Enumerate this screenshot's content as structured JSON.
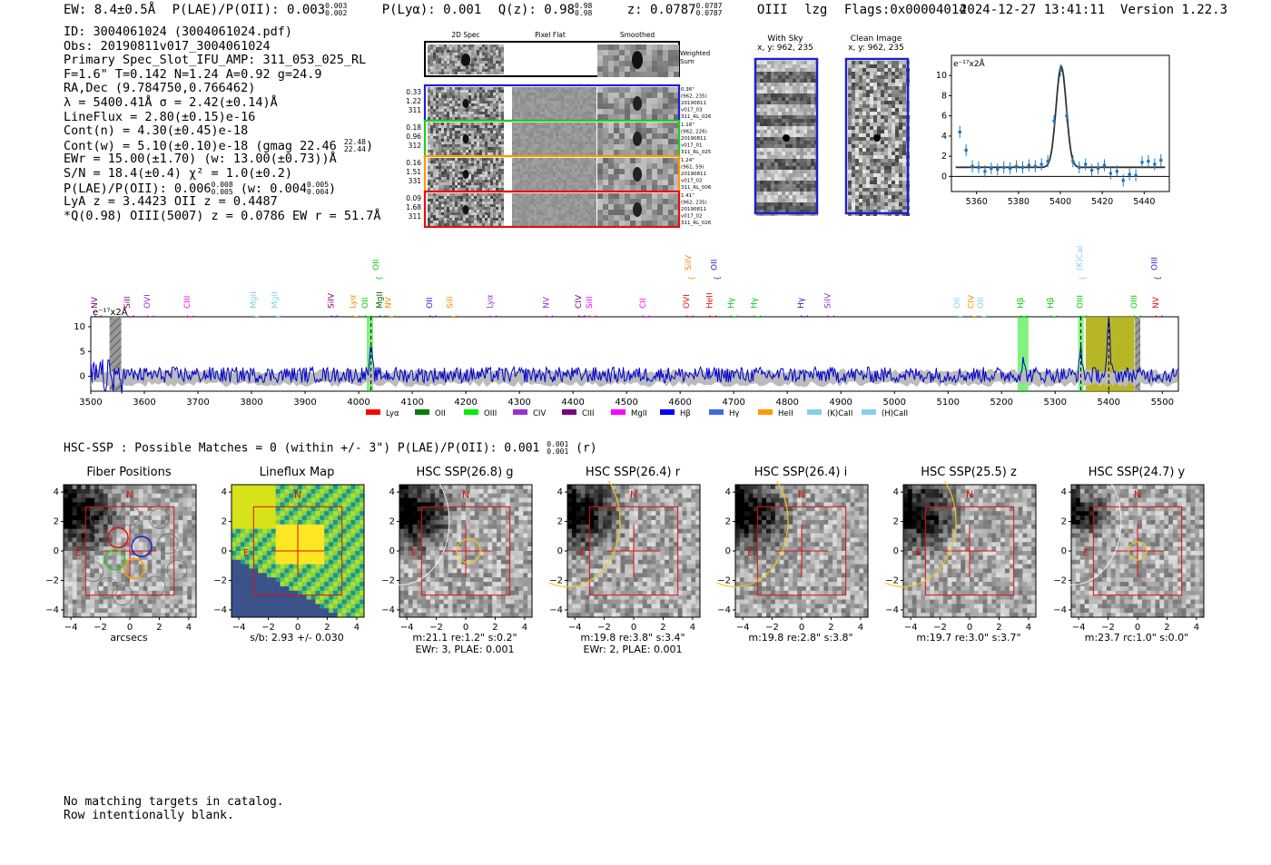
{
  "header": {
    "ew": "EW: 8.4±0.5Å",
    "plae_label": "P(LAE)/P(OII): 0.003",
    "plae_hi": "0.003",
    "plae_lo": "0.002",
    "plya": "P(Lyα): 0.001",
    "q_label": "Q(z): 0.98",
    "q_hi": "0.98",
    "q_lo": "0.98",
    "z_label": "z: 0.0787",
    "z_hi": "0.0787",
    "z_lo": "0.0787",
    "line": "OIII",
    "mode": "lzg",
    "flags": "Flags:0x00004014",
    "timestamp": "2024-12-27 13:41:11",
    "version": "Version 1.22.3"
  },
  "info": {
    "id": "ID: 3004061024 (3004061024.pdf)",
    "obs": "Obs: 20190811v017_3004061024",
    "primary": "Primary Spec_Slot_IFU_AMP: 311_053_025_RL",
    "fparams": "F=1.6\"  T=0.142  N=1.24  A=0.92  g=24.9",
    "radec": "RA,Dec (9.784750,0.766462)",
    "lambda": "λ = 5400.41Å  σ = 2.42(±0.14)Å",
    "lineflux": "LineFlux = 2.80(±0.15)e-16",
    "contn": "Cont(n) = 4.30(±0.45)e-18",
    "contw": "Cont(w) = 5.10(±0.10)e-18 (gmag 22.46",
    "contw_hi": "22.48",
    "contw_lo": "22.44",
    "ewr": "EWr = 15.00(±1.70) (w: 13.00(±0.73))Å",
    "sn": "S/N = 18.4(±0.4)  χ² = 1.0(±0.2)",
    "plae": "P(LAE)/P(OII): 0.006",
    "plae_hi": "0.008",
    "plae_lo": "0.005",
    "plae_w": "(w: 0.004",
    "plae_w_hi": "0.005",
    "plae_w_lo": "0.004",
    "lya": "LyA z = 3.4423  OII z = 0.4487",
    "qline": "*Q(0.98) OIII(5007) z = 0.0786  EW r = 51.7Å"
  },
  "cutouts2d": {
    "col_titles": [
      "2D Spec",
      "Pixel Flat",
      "Smoothed"
    ],
    "weighted_label": "Weighted\nSum",
    "rows": [
      {
        "left": [
          "0.33",
          "1.22",
          "311"
        ],
        "right": [
          "0.36\"",
          "(962, 235)",
          "20190811",
          "v017_03",
          "311_RL_026"
        ],
        "color": "#1f1fcc"
      },
      {
        "left": [
          "0.18",
          "0.96",
          "312"
        ],
        "right": [
          "1.16\"",
          "(962, 226)",
          "20190811",
          "v017_01",
          "311_RL_025"
        ],
        "color": "#22cc22"
      },
      {
        "left": [
          "0.16",
          "1.51",
          "331"
        ],
        "right": [
          "1.24\"",
          "(961, 59)",
          "20190811",
          "v017_02",
          "311_RL_006"
        ],
        "color": "#ff9900"
      },
      {
        "left": [
          "0.09",
          "1.68",
          "311"
        ],
        "right": [
          "1.41\"",
          "(962, 235)",
          "20190811",
          "v017_02",
          "311_RL_026"
        ],
        "color": "#e01010"
      }
    ]
  },
  "sky": {
    "with_sky_title": "With Sky",
    "with_sky_xy": "x, y: 962, 235",
    "clean_title": "Clean Image",
    "clean_xy": "x, y: 962, 235"
  },
  "zoom_chart_data": {
    "type": "scatter",
    "ylabel": "e⁻¹⁷x2Å",
    "xlim": [
      5348,
      5452
    ],
    "ylim": [
      -1.5,
      12
    ],
    "xticks": [
      5360,
      5380,
      5400,
      5420,
      5440
    ],
    "yticks": [
      0,
      2,
      4,
      6,
      8,
      10
    ],
    "points_x": [
      5352,
      5355,
      5358,
      5361,
      5364,
      5367,
      5370,
      5373,
      5376,
      5379,
      5382,
      5385,
      5388,
      5391,
      5394,
      5397,
      5400,
      5403,
      5406,
      5409,
      5412,
      5415,
      5418,
      5421,
      5424,
      5427,
      5430,
      5433,
      5436,
      5439,
      5442,
      5445,
      5448
    ],
    "points_y": [
      4.4,
      2.6,
      1.0,
      0.9,
      0.5,
      0.8,
      0.7,
      0.9,
      0.8,
      1.0,
      0.9,
      1.1,
      1.0,
      1.2,
      1.5,
      5.5,
      10.5,
      6.0,
      1.5,
      0.9,
      1.2,
      0.6,
      0.8,
      1.1,
      0.3,
      0.5,
      -0.4,
      0.2,
      0.1,
      1.4,
      1.5,
      1.2,
      1.6
    ],
    "fit_center": 5400.4,
    "fit_sigma": 2.42,
    "fit_amp": 10.0,
    "fit_base": 0.9
  },
  "spectrum_chart_data": {
    "type": "line",
    "ylabel": "e⁻¹⁷x2Å",
    "xlim": [
      3500,
      5530
    ],
    "ylim": [
      -3,
      12
    ],
    "xticks": [
      3500,
      3600,
      3700,
      3800,
      3900,
      4000,
      4100,
      4200,
      4300,
      4400,
      4500,
      4600,
      4700,
      4800,
      4900,
      5000,
      5100,
      5200,
      5300,
      5400,
      5500
    ],
    "yticks": [
      0,
      5,
      10
    ],
    "series_color": "#0000cc",
    "peaks": [
      {
        "x": 4023,
        "y": 4.5
      },
      {
        "x": 5240,
        "y": 2.5
      },
      {
        "x": 5348,
        "y": 4.5
      },
      {
        "x": 5400,
        "y": 10.5
      }
    ],
    "bands": [
      {
        "x0": 3535,
        "x1": 3557,
        "kind": "hatch"
      },
      {
        "x0": 4015,
        "x1": 4027,
        "kind": "green"
      },
      {
        "x0": 5230,
        "x1": 5250,
        "kind": "green"
      },
      {
        "x0": 5343,
        "x1": 5353,
        "kind": "green"
      },
      {
        "x0": 5357,
        "x1": 5448,
        "kind": "olive"
      },
      {
        "x0": 5449,
        "x1": 5459,
        "kind": "hatch"
      }
    ],
    "line_markers": [
      {
        "label": "NV",
        "x": 3512,
        "color": "#800080",
        "row": 1
      },
      {
        "label": "SiII",
        "x": 3573,
        "color": "#800080",
        "row": 1
      },
      {
        "label": "OVI",
        "x": 3610,
        "color": "#9932cc",
        "row": 1
      },
      {
        "label": "CIII",
        "x": 3685,
        "color": "#ff00ff",
        "row": 1
      },
      {
        "label": "MgII",
        "x": 3808,
        "color": "#87ceeb",
        "row": 1
      },
      {
        "label": "MgII",
        "x": 3848,
        "color": "#87ceeb",
        "row": 1
      },
      {
        "label": "SiIV",
        "x": 3953,
        "color": "#800080",
        "row": 1
      },
      {
        "label": "Lyα",
        "x": 3994,
        "color": "#ff8c00",
        "row": 1
      },
      {
        "label": "OII",
        "x": 4017,
        "color": "#00cc00",
        "row": 1
      },
      {
        "label": "MgII",
        "x": 4044,
        "color": "#006400",
        "row": 1
      },
      {
        "label": "NV",
        "x": 4060,
        "color": "#ff8c00",
        "row": 1
      },
      {
        "label": "OII",
        "x": 4037,
        "color": "#00cc00",
        "row": 0
      },
      {
        "label": "OII",
        "x": 4137,
        "color": "#1f1fcc",
        "row": 1
      },
      {
        "label": "SiII",
        "x": 4175,
        "color": "#ff8c00",
        "row": 1
      },
      {
        "label": "Lyα",
        "x": 4250,
        "color": "#9932cc",
        "row": 1
      },
      {
        "label": "NV",
        "x": 4355,
        "color": "#9932cc",
        "row": 1
      },
      {
        "label": "CIV",
        "x": 4415,
        "color": "#800080",
        "row": 1
      },
      {
        "label": "SiII",
        "x": 4435,
        "color": "#ff00ff",
        "row": 1
      },
      {
        "label": "CII",
        "x": 4535,
        "color": "#ff00ff",
        "row": 1
      },
      {
        "label": "OVI",
        "x": 4617,
        "color": "#e01010",
        "row": 1
      },
      {
        "label": "SiIV",
        "x": 4620,
        "color": "#ff8c00",
        "row": 0
      },
      {
        "label": "OII",
        "x": 4668,
        "color": "#1f1fcc",
        "row": 0
      },
      {
        "label": "HeII",
        "x": 4660,
        "color": "#e01010",
        "row": 1
      },
      {
        "label": "Hγ",
        "x": 4700,
        "color": "#00cc00",
        "row": 1
      },
      {
        "label": "Hγ",
        "x": 4743,
        "color": "#00cc00",
        "row": 1
      },
      {
        "label": "Hγ",
        "x": 4830,
        "color": "#1f1fcc",
        "row": 1
      },
      {
        "label": "SiIV",
        "x": 4880,
        "color": "#9932cc",
        "row": 1
      },
      {
        "label": "OII",
        "x": 5122,
        "color": "#87ceeb",
        "row": 1
      },
      {
        "label": "CIV",
        "x": 5148,
        "color": "#ff8c00",
        "row": 1
      },
      {
        "label": "OII",
        "x": 5166,
        "color": "#87ceeb",
        "row": 1
      },
      {
        "label": "(K)CaII",
        "x": 5350,
        "color": "#87ceeb",
        "row": 0
      },
      {
        "label": "Hβ",
        "x": 5240,
        "color": "#00cc00",
        "row": 1
      },
      {
        "label": "Hβ",
        "x": 5296,
        "color": "#00cc00",
        "row": 1
      },
      {
        "label": "OIII",
        "x": 5351,
        "color": "#00cc00",
        "row": 1
      },
      {
        "label": "OIII",
        "x": 5452,
        "color": "#00cc00",
        "row": 1
      },
      {
        "label": "OIII",
        "x": 5490,
        "color": "#1f1fcc",
        "row": 0
      },
      {
        "label": "NV",
        "x": 5493,
        "color": "#e01010",
        "row": 1
      }
    ],
    "legend": [
      {
        "label": "Lyα",
        "color": "#ff0000"
      },
      {
        "label": "OII",
        "color": "#008000"
      },
      {
        "label": "OIII",
        "color": "#00ee00"
      },
      {
        "label": "CIV",
        "color": "#9932cc"
      },
      {
        "label": "CIII",
        "color": "#800080"
      },
      {
        "label": "MgII",
        "color": "#ff00ff"
      },
      {
        "label": "Hβ",
        "color": "#0000ff"
      },
      {
        "label": "Hγ",
        "color": "#4169e1"
      },
      {
        "label": "HeII",
        "color": "#ff9900"
      },
      {
        "label": "(K)CaII",
        "color": "#87ceeb"
      },
      {
        "label": "(H)CaII",
        "color": "#87ceeb"
      }
    ]
  },
  "hsc": {
    "summary": "HSC-SSP : Possible Matches = 0 (within +/- 3\")  P(LAE)/P(OII): 0.001",
    "summary_hi": "0.001",
    "summary_lo": "0.001",
    "summary_band": "(r)",
    "axis_ticks": [
      "−4",
      "−2",
      "0",
      "2",
      "4"
    ],
    "north": "N",
    "east": "E",
    "panels": [
      {
        "title": "Fiber Positions",
        "caption1": "arcsecs",
        "caption2": ""
      },
      {
        "title": "Lineflux Map",
        "caption1": "s/b: 2.93 +/- 0.030",
        "caption2": ""
      },
      {
        "title": "HSC SSP(26.8) g",
        "caption1": "m:21.1  re:1.2\"  s:0.2\"",
        "caption2": "EWr: 3, PLAE: 0.001"
      },
      {
        "title": "HSC SSP(26.4) r",
        "caption1": "m:19.8  re:3.8\"  s:3.4\"",
        "caption2": "EWr: 2, PLAE: 0.001"
      },
      {
        "title": "HSC SSP(26.4) i",
        "caption1": "m:19.8  re:2.8\"  s:3.8\"",
        "caption2": ""
      },
      {
        "title": "HSC SSP(25.5) z",
        "caption1": "m:19.7  re:3.0\"  s:3.7\"",
        "caption2": ""
      },
      {
        "title": "HSC SSP(24.7) y",
        "caption1": "m:23.7  rc:1.0\"  s:0.0\"",
        "caption2": ""
      }
    ]
  },
  "footer": {
    "line1": "No matching targets in catalog.",
    "line2": "Row intentionally blank."
  }
}
